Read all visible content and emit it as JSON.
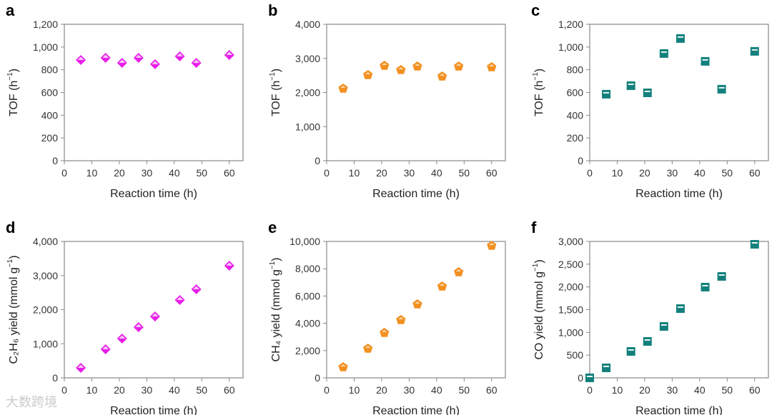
{
  "colors": {
    "magenta": "#e81ee8",
    "orange": "#f39022",
    "teal": "#13807c",
    "axis": "#888888"
  },
  "watermark": "大数跨境",
  "chart_data": [
    {
      "panel": "a",
      "type": "scatter",
      "marker": "diamond",
      "color": "#e81ee8",
      "xlabel": "Reaction time (h)",
      "ylabel": "TOF (h⁻¹)",
      "ylabel_main": "TOF (h",
      "ylabel_sup": "−1",
      "ylabel_end": ")",
      "xlim": [
        0,
        65
      ],
      "ylim": [
        0,
        1200
      ],
      "xticks": [
        0,
        10,
        20,
        30,
        40,
        50,
        60
      ],
      "yticks": [
        0,
        200,
        400,
        600,
        800,
        1000,
        1200
      ],
      "ytick_labels": [
        "0",
        "200",
        "400",
        "600",
        "800",
        "1,000",
        "1,200"
      ],
      "x": [
        6,
        15,
        21,
        27,
        33,
        42,
        48,
        60
      ],
      "y": [
        886,
        905,
        861,
        905,
        849,
        918,
        860,
        930
      ]
    },
    {
      "panel": "b",
      "type": "scatter",
      "marker": "pentagon",
      "color": "#f39022",
      "xlabel": "Reaction time (h)",
      "ylabel_main": "TOF (h",
      "ylabel_sup": "−1",
      "ylabel_end": ")",
      "xlim": [
        0,
        65
      ],
      "ylim": [
        0,
        4000
      ],
      "xticks": [
        0,
        10,
        20,
        30,
        40,
        50,
        60
      ],
      "yticks": [
        0,
        1000,
        2000,
        3000,
        4000
      ],
      "ytick_labels": [
        "0",
        "1,000",
        "2,000",
        "3,000",
        "4,000"
      ],
      "x": [
        6,
        15,
        21,
        27,
        33,
        42,
        48,
        60
      ],
      "y": [
        2115,
        2513,
        2785,
        2660,
        2764,
        2471,
        2764,
        2743
      ]
    },
    {
      "panel": "c",
      "type": "scatter",
      "marker": "square",
      "color": "#13807c",
      "xlabel": "Reaction time (h)",
      "ylabel_main": "TOF (h",
      "ylabel_sup": "−1",
      "ylabel_end": ")",
      "xlim": [
        0,
        65
      ],
      "ylim": [
        0,
        1200
      ],
      "xticks": [
        0,
        10,
        20,
        30,
        40,
        50,
        60
      ],
      "yticks": [
        0,
        200,
        400,
        600,
        800,
        1000,
        1200
      ],
      "ytick_labels": [
        "0",
        "200",
        "400",
        "600",
        "800",
        "1,000",
        "1,200"
      ],
      "x": [
        6,
        15,
        21,
        27,
        33,
        42,
        48,
        60
      ],
      "y": [
        585,
        660,
        597,
        943,
        1075,
        874,
        629,
        962
      ]
    },
    {
      "panel": "d",
      "type": "scatter",
      "marker": "diamond",
      "color": "#e81ee8",
      "xlabel": "Reaction time (h)",
      "ylabel_main": "C₂H₆ yield (mmol g",
      "ylabel_sup": "−1",
      "ylabel_end": ")",
      "xlim": [
        0,
        65
      ],
      "ylim": [
        0,
        4000
      ],
      "xticks": [
        0,
        10,
        20,
        30,
        40,
        50,
        60
      ],
      "yticks": [
        0,
        1000,
        2000,
        3000,
        4000
      ],
      "ytick_labels": [
        "0",
        "1,000",
        "2,000",
        "3,000",
        "4,000"
      ],
      "x": [
        6,
        15,
        21,
        27,
        33,
        42,
        48,
        60
      ],
      "y": [
        293,
        838,
        1152,
        1487,
        1801,
        2283,
        2597,
        3288
      ]
    },
    {
      "panel": "e",
      "type": "scatter",
      "marker": "pentagon",
      "color": "#f39022",
      "xlabel": "Reaction time (h)",
      "ylabel_main": "CH₄ yield (mmol g",
      "ylabel_sup": "−1",
      "ylabel_end": ")",
      "xlim": [
        0,
        65
      ],
      "ylim": [
        0,
        10000
      ],
      "xticks": [
        0,
        10,
        20,
        30,
        40,
        50,
        60
      ],
      "yticks": [
        0,
        2000,
        4000,
        6000,
        8000,
        10000
      ],
      "ytick_labels": [
        "0",
        "2,000",
        "4,000",
        "6,000",
        "8,000",
        "10,000"
      ],
      "x": [
        6,
        15,
        21,
        27,
        33,
        42,
        48,
        60
      ],
      "y": [
        785,
        2147,
        3298,
        4241,
        5393,
        6702,
        7749,
        9686
      ]
    },
    {
      "panel": "f",
      "type": "scatter",
      "marker": "square",
      "color": "#13807c",
      "xlabel": "Reaction time (h)",
      "ylabel_main": "CO yield (mmol g",
      "ylabel_sup": "−1",
      "ylabel_end": ")",
      "xlim": [
        0,
        65
      ],
      "ylim": [
        0,
        3000
      ],
      "xticks": [
        0,
        10,
        20,
        30,
        40,
        50,
        60
      ],
      "yticks": [
        0,
        500,
        1000,
        1500,
        2000,
        2500,
        3000
      ],
      "ytick_labels": [
        "0",
        "500",
        "1,000",
        "1,500",
        "2,000",
        "2,500",
        "3,000"
      ],
      "x": [
        0,
        6,
        15,
        21,
        27,
        33,
        42,
        48,
        60
      ],
      "y": [
        0,
        220,
        581,
        801,
        1131,
        1523,
        1995,
        2230,
        2937
      ]
    }
  ]
}
